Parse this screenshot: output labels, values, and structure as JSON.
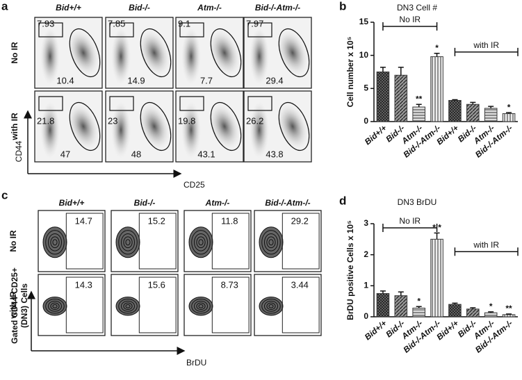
{
  "panel_a": {
    "label": "a",
    "columns": [
      "Bid+/+",
      "Bid-/-",
      "Atm-/-",
      "Bid-/-Atm-/-"
    ],
    "rows": [
      {
        "label": "No IR",
        "top": [
          7.93,
          7.85,
          9.1,
          7.97
        ],
        "bottom": [
          10.4,
          14.9,
          7.7,
          29.4
        ]
      },
      {
        "label": "with IR",
        "top": [
          21.8,
          23,
          19.8,
          26.2
        ],
        "bottom": [
          47,
          48,
          43.1,
          43.8
        ]
      }
    ],
    "y_axis": "CD44",
    "x_axis": "CD25"
  },
  "panel_c": {
    "label": "c",
    "columns": [
      "Bid+/+",
      "Bid-/-",
      "Atm-/-",
      "Bid-/-Atm-/-"
    ],
    "rows": [
      {
        "label": "No IR",
        "values": [
          14.7,
          15.2,
          11.8,
          29.2
        ]
      },
      {
        "label": "with IR",
        "values": [
          14.3,
          15.6,
          8.73,
          3.44
        ]
      }
    ],
    "y_axis": [
      "Gated CD44-CD25+",
      "(DN3) Cells"
    ],
    "x_axis": "BrDU"
  },
  "chart_data": [
    {
      "type": "bar",
      "panel": "b",
      "title": "DN3 Cell #",
      "y_label": "Cell number x 10⁵",
      "categories": [
        "Bid+/+",
        "Bid-/-",
        "Atm-/-",
        "Bid-/-Atm-/-",
        "Bid+/+",
        "Bid-/-",
        "Atm-/-",
        "Bid-/-Atm-/-"
      ],
      "values": [
        7.5,
        7.0,
        2.2,
        9.8,
        3.2,
        2.6,
        2.0,
        1.2
      ],
      "errors": [
        0.7,
        1.2,
        0.4,
        0.5,
        0.1,
        0.3,
        0.3,
        0.15
      ],
      "annotations": [
        null,
        null,
        "**",
        "*",
        null,
        null,
        null,
        "*"
      ],
      "groups": [
        "No IR",
        "with IR"
      ],
      "color": "#3a3a3a",
      "ylim": [
        0,
        15
      ],
      "yticks": [
        0,
        5,
        10,
        15
      ]
    },
    {
      "type": "bar",
      "panel": "d",
      "title": "DN3 BrDU",
      "y_label": "BrDU positive Cells x 10⁵",
      "categories": [
        "Bid+/+",
        "Bid-/-",
        "Atm-/-",
        "Bid-/-Atm-/-",
        "Bid+/+",
        "Bid-/-",
        "Atm-/-",
        "Bid-/-Atm-/-"
      ],
      "values": [
        0.75,
        0.68,
        0.28,
        2.5,
        0.4,
        0.25,
        0.13,
        0.07
      ],
      "errors": [
        0.08,
        0.12,
        0.05,
        0.2,
        0.04,
        0.04,
        0.03,
        0.02
      ],
      "annotations": [
        null,
        null,
        "*",
        "* *",
        null,
        null,
        "*",
        "**"
      ],
      "groups": [
        "No IR",
        "with IR"
      ],
      "color": "#3a3a3a",
      "ylim": [
        0,
        3
      ],
      "yticks": [
        0,
        1,
        2,
        3
      ]
    }
  ]
}
